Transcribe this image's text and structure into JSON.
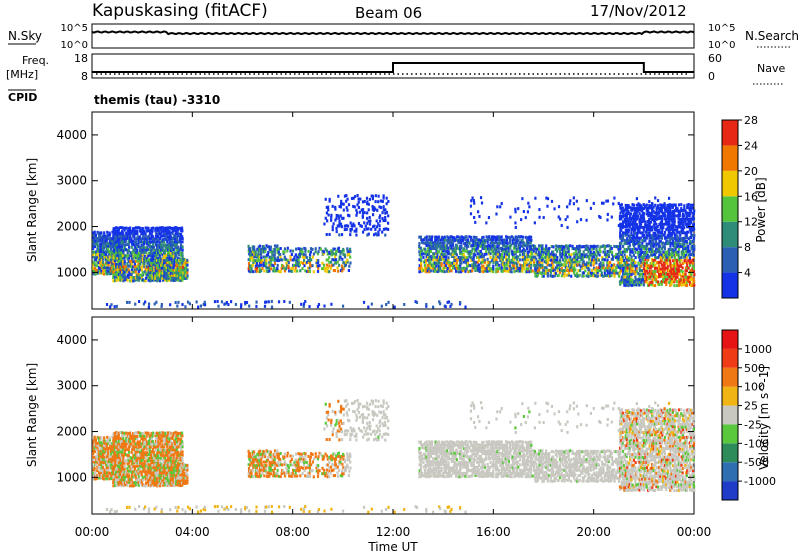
{
  "header": {
    "station": "Kapuskasing (fitACF)",
    "beam": "Beam 06",
    "date": "17/Nov/2012"
  },
  "chart_data": [
    {
      "type": "line",
      "panel": "noise",
      "left_label": "N.Sky",
      "right_label": "N.Search",
      "left_ticks": [
        "10^5",
        "10^0"
      ],
      "right_ticks": [
        "10^5",
        "10^0"
      ]
    },
    {
      "type": "line",
      "panel": "frequency",
      "left_label": "Freq.",
      "left_unit": "[MHz]",
      "right_label": "Nave",
      "cpid_label": "CPID",
      "left_ticks": [
        "18",
        "8"
      ],
      "right_ticks": [
        "60",
        "0"
      ],
      "step_times_h": [
        0,
        12,
        22,
        24
      ],
      "step_levels": [
        "low",
        "high",
        "low"
      ]
    },
    {
      "type": "heatmap",
      "panel": "power",
      "program": "themis (tau) -3310",
      "ylabel": "Slant Range [km]",
      "ylim": [
        200,
        4500
      ],
      "yticks": [
        "1000",
        "2000",
        "3000",
        "4000"
      ],
      "colorbar_label": "Power [dB]",
      "colorbar_ticks": [
        "4",
        "8",
        "12",
        "16",
        "20",
        "24",
        "28"
      ],
      "colors": [
        "#1432e6",
        "#2a5fb4",
        "#2e8c78",
        "#54c43c",
        "#f0c800",
        "#f07800",
        "#e62814"
      ]
    },
    {
      "type": "heatmap",
      "panel": "velocity",
      "ylabel": "Slant Range [km]",
      "ylim": [
        200,
        4500
      ],
      "yticks": [
        "1000",
        "2000",
        "3000",
        "4000"
      ],
      "colorbar_label": "Velocity [m s^-1]",
      "colorbar_ticks": [
        "1000",
        "500",
        "100",
        "25",
        "-25",
        "-100",
        "-500",
        "-1000"
      ],
      "colors": [
        "#1e3cc8",
        "#2f6eb0",
        "#2e8c5a",
        "#5ac83c",
        "#c8c8c0",
        "#f0b414",
        "#f07814",
        "#f03c14",
        "#e61414"
      ]
    }
  ],
  "axis_x": {
    "label": "Time UT",
    "ticks": [
      "00:00",
      "04:00",
      "08:00",
      "12:00",
      "16:00",
      "20:00",
      "00:00"
    ]
  }
}
